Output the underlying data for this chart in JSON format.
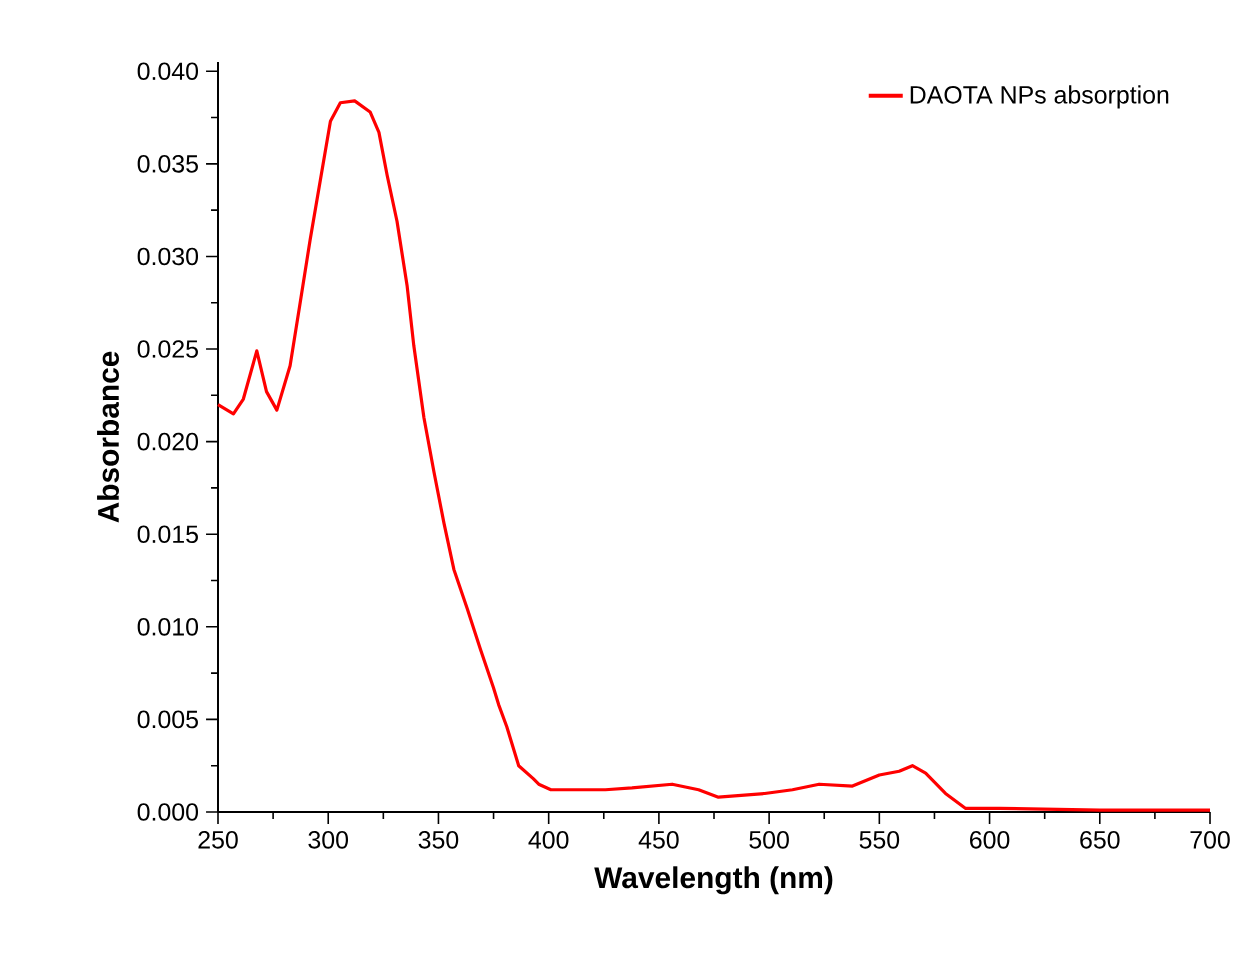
{
  "chart_data": {
    "type": "line",
    "xlabel": "Wavelength (nm)",
    "ylabel": "Absorbance",
    "series": [
      {
        "name": "DAOTA NPs absorption",
        "color": "#ff0000",
        "x": [
          250,
          257,
          261.5,
          267.6,
          272,
          276.7,
          282.7,
          287,
          291.8,
          296.4,
          301,
          305.5,
          312,
          319,
          323,
          326.7,
          331.2,
          335.8,
          338.8,
          343.4,
          347.9,
          352.5,
          357,
          363,
          369,
          375,
          377.3,
          381,
          386.4,
          393,
          395.5,
          401,
          407.6,
          425.7,
          437.8,
          456,
          468,
          477,
          498,
          510.6,
          522.7,
          537.8,
          550,
          559,
          565,
          571,
          580,
          589,
          604.5,
          650,
          700
        ],
        "values": [
          0.022,
          0.0215,
          0.0223,
          0.0249,
          0.0227,
          0.0217,
          0.0241,
          0.0273,
          0.0309,
          0.0341,
          0.0373,
          0.0383,
          0.0384,
          0.0378,
          0.0367,
          0.0344,
          0.0319,
          0.0284,
          0.0252,
          0.0213,
          0.0184,
          0.0156,
          0.0131,
          0.011,
          0.0088,
          0.0067,
          0.0058,
          0.0046,
          0.0025,
          0.0018,
          0.0015,
          0.0012,
          0.0012,
          0.0012,
          0.0013,
          0.0015,
          0.0012,
          0.0008,
          0.001,
          0.0012,
          0.0015,
          0.0014,
          0.002,
          0.0022,
          0.0025,
          0.0021,
          0.001,
          0.0002,
          0.0002,
          0.0001,
          0.0001
        ]
      }
    ],
    "xlim": [
      250,
      700
    ],
    "xticks": [
      250,
      300,
      350,
      400,
      450,
      500,
      550,
      600,
      650,
      700
    ],
    "ylim": [
      0,
      0.0405
    ],
    "yticks": [
      {
        "value": 0,
        "label": "0.000"
      },
      {
        "value": 0.005,
        "label": "0.005"
      },
      {
        "value": 0.01,
        "label": "0.010"
      },
      {
        "value": 0.015,
        "label": "0.015"
      },
      {
        "value": 0.02,
        "label": "0.020"
      },
      {
        "value": 0.025,
        "label": "0.025"
      },
      {
        "value": 0.03,
        "label": "0.030"
      },
      {
        "value": 0.035,
        "label": "0.035"
      },
      {
        "value": 0.04,
        "label": "0.040"
      }
    ],
    "grid": false,
    "legend": "top right",
    "marker": "none",
    "line_style": "solid"
  }
}
